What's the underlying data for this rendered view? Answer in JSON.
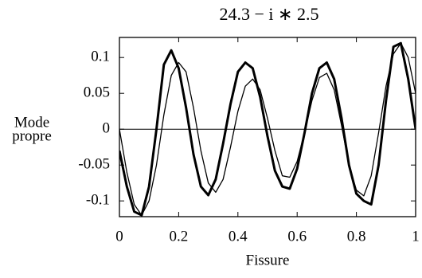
{
  "chart_data": {
    "type": "line",
    "title": "24.3 − i ∗ 2.5",
    "xlabel": "Fissure",
    "ylabel": [
      "Mode",
      "propre"
    ],
    "x": [
      0,
      0.025,
      0.05,
      0.075,
      0.1,
      0.125,
      0.15,
      0.175,
      0.2,
      0.225,
      0.25,
      0.275,
      0.3,
      0.325,
      0.35,
      0.375,
      0.4,
      0.425,
      0.45,
      0.475,
      0.5,
      0.525,
      0.55,
      0.575,
      0.6,
      0.625,
      0.65,
      0.675,
      0.7,
      0.725,
      0.75,
      0.775,
      0.8,
      0.825,
      0.85,
      0.875,
      0.9,
      0.925,
      0.95,
      0.975,
      1
    ],
    "series": [
      {
        "color": "#000000",
        "values": [
          -0.03,
          -0.08,
          -0.115,
          -0.12,
          -0.08,
          0.0,
          0.09,
          0.11,
          0.085,
          0.03,
          -0.035,
          -0.08,
          -0.092,
          -0.07,
          -0.02,
          0.035,
          0.08,
          0.093,
          0.085,
          0.045,
          -0.01,
          -0.058,
          -0.08,
          -0.083,
          -0.055,
          -0.005,
          0.05,
          0.085,
          0.093,
          0.07,
          0.015,
          -0.05,
          -0.09,
          -0.1,
          -0.105,
          -0.05,
          0.04,
          0.115,
          0.12,
          0.07,
          0.0
        ]
      },
      {
        "color": "#000000",
        "values": [
          0.0,
          -0.06,
          -0.105,
          -0.12,
          -0.1,
          -0.05,
          0.02,
          0.075,
          0.093,
          0.08,
          0.03,
          -0.03,
          -0.075,
          -0.088,
          -0.07,
          -0.025,
          0.025,
          0.06,
          0.07,
          0.055,
          0.015,
          -0.03,
          -0.065,
          -0.067,
          -0.045,
          -0.005,
          0.04,
          0.072,
          0.078,
          0.055,
          0.005,
          -0.05,
          -0.085,
          -0.093,
          -0.065,
          -0.005,
          0.06,
          0.105,
          0.12,
          0.1,
          0.05
        ]
      }
    ],
    "xlim": [
      0,
      1
    ],
    "xticks": [
      0,
      0.2,
      0.4,
      0.6,
      0.8,
      1
    ],
    "ylim": [
      -0.122,
      0.128
    ],
    "yticks": [
      0.1,
      0.05,
      0,
      -0.05,
      -0.1
    ],
    "zero_line": true
  }
}
